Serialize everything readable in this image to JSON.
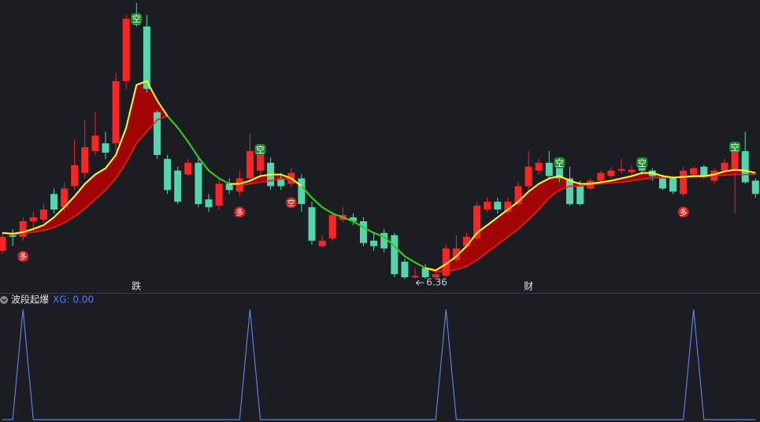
{
  "chart_data": [
    {
      "type": "candlestick",
      "open": [
        6.73,
        6.93,
        6.91,
        7.11,
        7.13,
        7.46,
        7.29,
        7.56,
        7.73,
        8.01,
        8.11,
        8.11,
        8.91,
        9.71,
        9.61,
        8.51,
        7.91,
        7.76,
        7.71,
        7.86,
        7.39,
        7.31,
        7.59,
        7.49,
        7.66,
        7.76,
        7.86,
        7.66,
        7.59,
        7.66,
        7.29,
        6.79,
        6.89,
        7.13,
        7.16,
        7.11,
        6.86,
        6.96,
        6.93,
        6.59,
        6.39,
        6.51,
        6.39,
        6.41,
        6.61,
        6.79,
        6.89,
        7.26,
        7.36,
        7.23,
        7.33,
        7.56,
        7.76,
        7.86,
        7.86,
        7.66,
        7.56,
        7.53,
        7.63,
        7.69,
        7.76,
        7.74,
        7.86,
        7.76,
        7.66,
        7.66,
        7.46,
        7.71,
        7.81,
        7.63,
        7.76,
        7.76,
        8.01,
        7.63
      ],
      "high": [
        6.96,
        7.01,
        7.16,
        7.23,
        7.33,
        7.53,
        7.61,
        8.16,
        8.41,
        8.51,
        8.26,
        9.01,
        9.76,
        9.91,
        9.76,
        8.53,
        7.96,
        7.81,
        7.91,
        7.91,
        7.46,
        7.66,
        7.66,
        7.76,
        8.23,
        8.09,
        7.93,
        7.73,
        7.79,
        7.71,
        7.36,
        6.93,
        7.23,
        7.29,
        7.21,
        7.16,
        6.96,
        7.01,
        6.96,
        6.63,
        6.51,
        6.56,
        6.46,
        6.81,
        6.93,
        6.96,
        7.36,
        7.41,
        7.41,
        7.41,
        7.61,
        8.01,
        7.91,
        8.01,
        7.93,
        7.81,
        7.63,
        7.66,
        7.76,
        7.81,
        7.91,
        7.83,
        7.91,
        7.79,
        7.71,
        7.69,
        7.81,
        7.81,
        7.83,
        7.79,
        7.91,
        8.09,
        8.26,
        7.66
      ],
      "low": [
        6.69,
        6.79,
        6.86,
        7.01,
        7.09,
        7.21,
        7.23,
        7.51,
        7.66,
        7.96,
        7.91,
        8.01,
        8.81,
        9.61,
        8.76,
        7.91,
        7.46,
        7.33,
        7.69,
        7.29,
        7.23,
        7.26,
        7.46,
        7.43,
        7.61,
        7.71,
        7.51,
        7.51,
        7.55,
        7.23,
        6.81,
        6.77,
        6.86,
        7.09,
        7.06,
        6.79,
        6.73,
        6.71,
        6.39,
        6.37,
        6.37,
        6.37,
        6.36,
        6.39,
        6.58,
        6.76,
        6.86,
        7.23,
        7.21,
        7.19,
        7.31,
        7.51,
        7.71,
        7.66,
        7.61,
        7.31,
        7.31,
        7.51,
        7.59,
        7.66,
        7.73,
        7.71,
        7.71,
        7.63,
        7.51,
        7.46,
        7.43,
        7.66,
        7.66,
        7.59,
        7.73,
        7.21,
        7.59,
        7.41
      ],
      "close": [
        6.91,
        6.91,
        7.11,
        7.16,
        7.26,
        7.26,
        7.53,
        7.83,
        8.06,
        8.21,
        7.99,
        8.91,
        9.71,
        9.63,
        8.81,
        7.96,
        7.51,
        7.36,
        7.86,
        7.33,
        7.29,
        7.59,
        7.51,
        7.66,
        8.01,
        8.03,
        7.56,
        7.56,
        7.73,
        7.33,
        6.86,
        6.86,
        7.19,
        7.19,
        7.11,
        6.83,
        6.79,
        6.76,
        6.43,
        6.39,
        6.41,
        6.39,
        6.43,
        6.76,
        6.76,
        6.91,
        7.31,
        7.36,
        7.26,
        7.36,
        7.56,
        7.81,
        7.86,
        7.69,
        7.66,
        7.33,
        7.33,
        7.63,
        7.73,
        7.76,
        7.78,
        7.77,
        7.76,
        7.69,
        7.53,
        7.49,
        7.76,
        7.79,
        7.69,
        7.76,
        7.86,
        8.06,
        7.61,
        7.46
      ],
      "up_color": "#ff2424",
      "down_color": "#52d6ad",
      "moving_averages": [
        {
          "color": "#ffff1e",
          "values": [
            6.96,
            6.95,
            6.97,
            7.01,
            7.06,
            7.16,
            7.29,
            7.43,
            7.59,
            7.71,
            7.79,
            7.96,
            8.31,
            8.86,
            8.91,
            8.66,
            8.46,
            8.31,
            8.13,
            7.93,
            7.76,
            7.66,
            7.59,
            7.59,
            7.63,
            7.69,
            7.71,
            7.71,
            7.66,
            7.56,
            7.41,
            7.29,
            7.21,
            7.16,
            7.11,
            7.03,
            6.96,
            6.91,
            6.79,
            6.66,
            6.58,
            6.51,
            6.48,
            6.56,
            6.66,
            6.79,
            6.96,
            7.06,
            7.16,
            7.26,
            7.36,
            7.49,
            7.59,
            7.66,
            7.69,
            7.63,
            7.59,
            7.59,
            7.61,
            7.63,
            7.66,
            7.69,
            7.73,
            7.73,
            7.69,
            7.67,
            7.68,
            7.69,
            7.69,
            7.71,
            7.75,
            7.77,
            7.76,
            7.73
          ]
        },
        {
          "color": "#e8201e",
          "values": [
            6.96,
            6.94,
            6.95,
            6.97,
            6.99,
            7.03,
            7.09,
            7.17,
            7.27,
            7.39,
            7.51,
            7.66,
            7.86,
            8.11,
            8.26,
            8.41,
            8.46,
            8.31,
            8.13,
            7.93,
            7.76,
            7.66,
            7.59,
            7.57,
            7.59,
            7.61,
            7.63,
            7.65,
            7.65,
            7.56,
            7.41,
            7.29,
            7.21,
            7.16,
            7.11,
            7.03,
            6.96,
            6.91,
            6.79,
            6.66,
            6.58,
            6.51,
            6.46,
            6.46,
            6.49,
            6.53,
            6.61,
            6.71,
            6.81,
            6.91,
            7.01,
            7.13,
            7.26,
            7.41,
            7.51,
            7.56,
            7.56,
            7.58,
            7.59,
            7.6,
            7.61,
            7.63,
            7.65,
            7.67,
            7.67,
            7.67,
            7.67,
            7.68,
            7.68,
            7.69,
            7.7,
            7.71,
            7.71,
            7.71
          ]
        }
      ],
      "fill_color": "#a00404",
      "falling_color": "#22c81e",
      "signals": [
        null,
        null,
        "多",
        null,
        null,
        null,
        null,
        null,
        null,
        null,
        null,
        null,
        null,
        "空",
        null,
        null,
        null,
        null,
        null,
        null,
        null,
        null,
        null,
        "多",
        null,
        "空",
        null,
        null,
        "空",
        null,
        null,
        null,
        null,
        null,
        null,
        null,
        null,
        null,
        null,
        null,
        null,
        null,
        null,
        null,
        null,
        null,
        null,
        null,
        null,
        null,
        null,
        null,
        null,
        null,
        "空",
        null,
        null,
        null,
        null,
        null,
        null,
        null,
        "空",
        null,
        null,
        null,
        "多",
        null,
        null,
        null,
        null,
        "空",
        null,
        null
      ],
      "bottom_labels": [
        null,
        null,
        null,
        null,
        null,
        null,
        null,
        null,
        null,
        null,
        null,
        null,
        null,
        "跌",
        null,
        null,
        null,
        null,
        null,
        null,
        null,
        null,
        null,
        null,
        null,
        null,
        null,
        null,
        null,
        null,
        null,
        null,
        null,
        null,
        null,
        null,
        null,
        null,
        null,
        null,
        null,
        null,
        null,
        null,
        null,
        null,
        null,
        null,
        null,
        null,
        null,
        "财",
        null,
        null,
        null,
        null,
        null,
        null,
        null,
        null,
        null,
        null,
        null,
        null,
        null,
        null,
        null,
        null,
        null,
        null,
        null,
        null,
        null,
        null
      ],
      "low_label": 6.36,
      "ylim": [
        6.19,
        9.95
      ]
    },
    {
      "type": "line",
      "title": "波段起爆",
      "legend": "XG: 0.00",
      "color": "#5b80e0",
      "values": [
        0,
        0,
        1,
        0,
        0,
        0,
        0,
        0,
        0,
        0,
        0,
        0,
        0,
        0,
        0,
        0,
        0,
        0,
        0,
        0,
        0,
        0,
        0,
        0,
        1,
        0,
        0,
        0,
        0,
        0,
        0,
        0,
        0,
        0,
        0,
        0,
        0,
        0,
        0,
        0,
        0,
        0,
        0,
        1,
        0,
        0,
        0,
        0,
        0,
        0,
        0,
        0,
        0,
        0,
        0,
        0,
        0,
        0,
        0,
        0,
        0,
        0,
        0,
        0,
        0,
        0,
        0,
        1,
        0,
        0,
        0,
        0,
        0,
        0
      ],
      "ylim": [
        0,
        1
      ]
    }
  ]
}
